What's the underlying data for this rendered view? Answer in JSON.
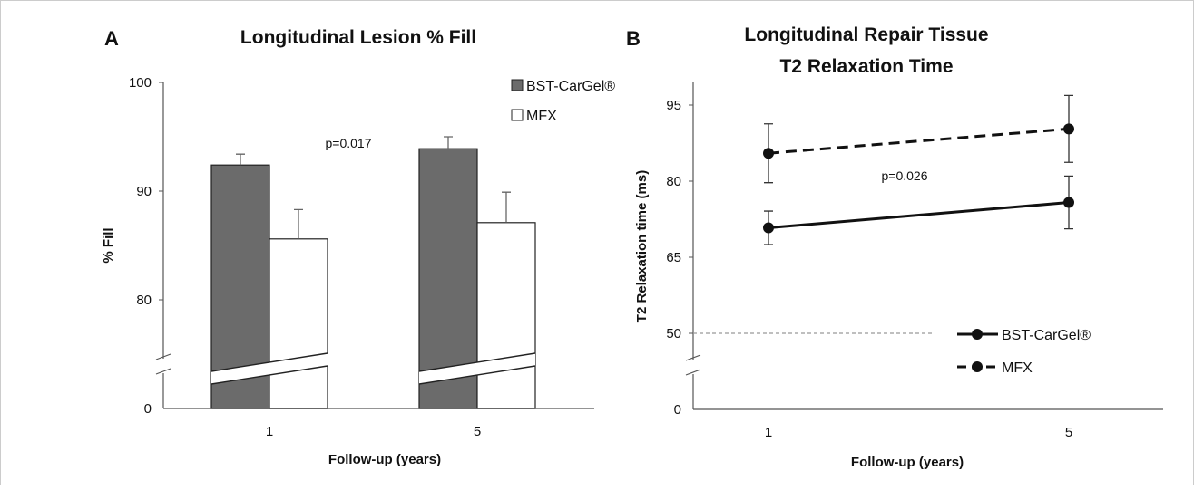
{
  "figure": {
    "border_color": "#cccccc"
  },
  "chart_data": [
    {
      "panel": "A",
      "type": "bar",
      "title": "Longitudinal  Lesion % Fill",
      "xlabel": "Follow-up (years)",
      "ylabel": "% Fill",
      "categories": [
        "1",
        "5"
      ],
      "series": [
        {
          "name": "BST-CarGel®",
          "values": [
            92.4,
            93.9
          ],
          "errors": [
            1.0,
            1.1
          ],
          "color": "#6b6b6b"
        },
        {
          "name": "MFX",
          "values": [
            85.6,
            87.1
          ],
          "errors": [
            2.7,
            2.8
          ],
          "color": "#ffffff"
        }
      ],
      "yticks": [
        "0",
        "80",
        "90",
        "100"
      ],
      "ylim": [
        0,
        100
      ],
      "axis_break": true,
      "annotation": "p=0.017",
      "legend_position": "top-right",
      "grid": false
    },
    {
      "panel": "B",
      "type": "line",
      "title": [
        "Longitudinal  Repair Tissue",
        "T2 Relaxation Time"
      ],
      "xlabel": "Follow-up (years)",
      "ylabel": "T2 Relaxation time (ms)",
      "x": [
        "1",
        "5"
      ],
      "series": [
        {
          "name": "BST-CarGel®",
          "values": [
            70.8,
            75.8
          ],
          "error_low": [
            3.3,
            5.2
          ],
          "error_high": [
            3.3,
            5.2
          ],
          "line_style": "solid"
        },
        {
          "name": "MFX",
          "values": [
            85.5,
            90.3
          ],
          "error_low": [
            5.8,
            6.6
          ],
          "error_high": [
            5.8,
            6.6
          ],
          "line_style": "dashed"
        }
      ],
      "yticks": [
        "0",
        "50",
        "65",
        "80",
        "95"
      ],
      "ylim": [
        0,
        99
      ],
      "axis_break": true,
      "reference_line": 50,
      "annotation": "p=0.026",
      "legend_position": "bottom-right",
      "grid": false
    }
  ]
}
